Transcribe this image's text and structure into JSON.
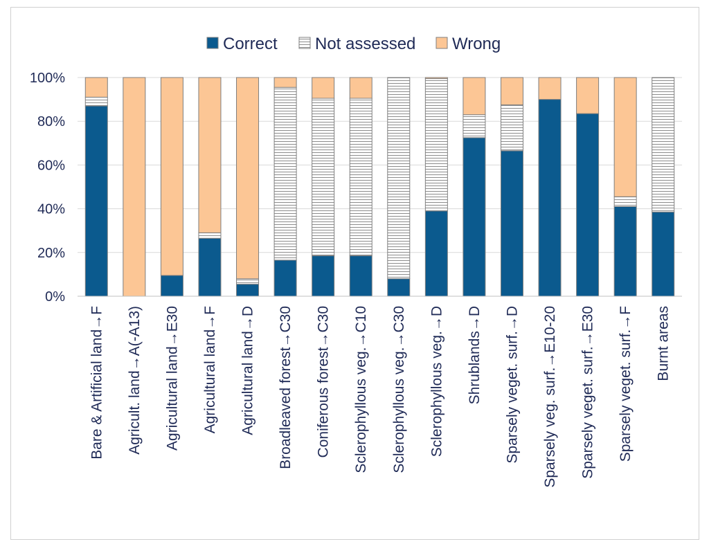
{
  "chart_data": {
    "type": "bar",
    "stacked": true,
    "normalized": true,
    "legend_position": "top",
    "title": "",
    "xlabel": "",
    "ylabel": "",
    "ylim": [
      0,
      100
    ],
    "y_ticks": [
      0,
      20,
      40,
      60,
      80,
      100
    ],
    "y_tick_labels": [
      "0%",
      "20%",
      "40%",
      "60%",
      "80%",
      "100%"
    ],
    "grid": true,
    "categories": [
      "Bare & Artificial land→F",
      "Agricult. land→A(-A13)",
      "Agricultural land→E30",
      "Agricultural land→F",
      "Agricultural land→D",
      "Broadleaved forest→C30",
      "Coniferous forest→C30",
      "Sclerophyllous veg.→C10",
      "Sclerophyllous veg.→C30",
      "Sclerophyllous veg.→D",
      "Shrublands→D",
      "Sparsely veget. surf.→D",
      "Sparsely veg. surf.→E10-20",
      "Sparsely veget. surf.→E30",
      "Sparsely veget. surf.→F",
      "Burnt areas"
    ],
    "series": [
      {
        "name": "Correct",
        "color": "#0b5a8e",
        "pattern": "solid",
        "values": [
          87,
          0,
          9.5,
          26.5,
          5.5,
          16.5,
          18.5,
          18.5,
          8,
          39,
          72.5,
          66.5,
          90,
          83.5,
          41,
          38.5
        ]
      },
      {
        "name": "Not assessed",
        "color": "#ffffff",
        "pattern": "horizontal-lines",
        "values": [
          4,
          0,
          0,
          2.5,
          2.5,
          79,
          72,
          72,
          92,
          60.5,
          10.5,
          21,
          0,
          0,
          4.5,
          61.5
        ]
      },
      {
        "name": "Wrong",
        "color": "#fcc695",
        "pattern": "solid",
        "values": [
          9,
          100,
          90.5,
          71,
          92,
          4.5,
          9.5,
          9.5,
          0,
          0.5,
          17,
          12.5,
          10,
          16.5,
          54.5,
          0
        ]
      }
    ]
  }
}
